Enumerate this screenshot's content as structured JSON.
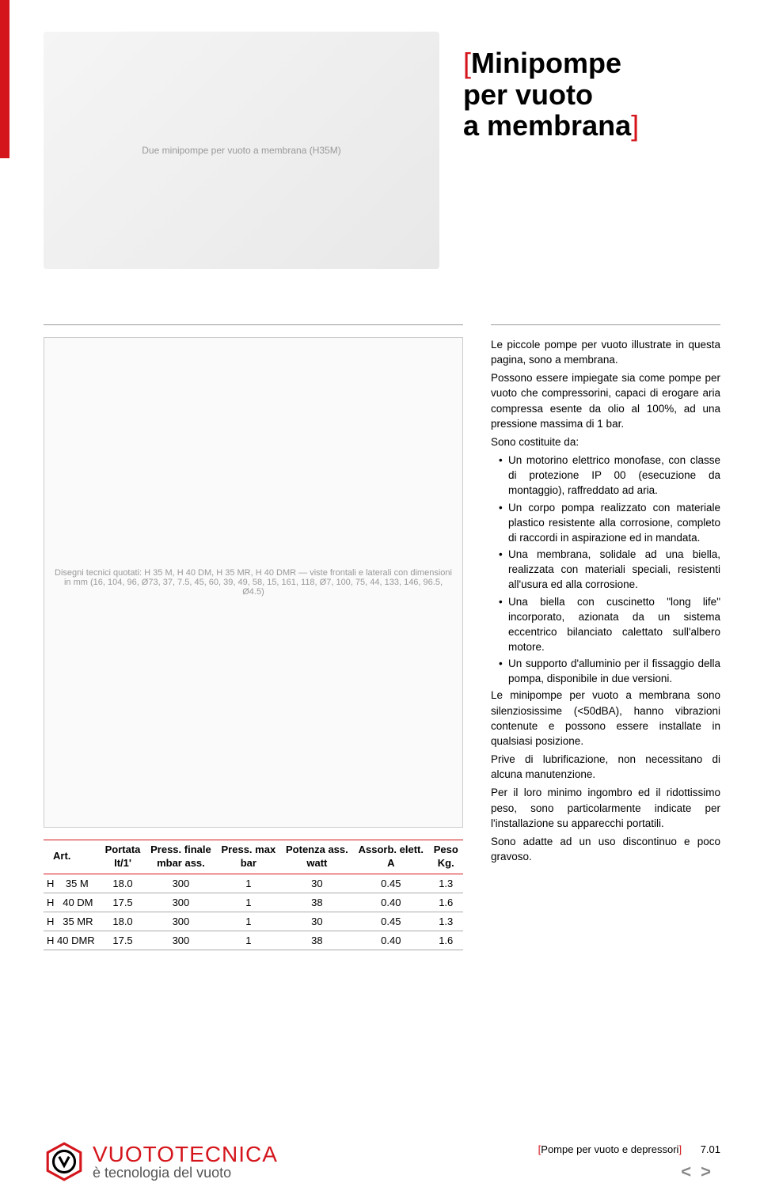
{
  "title": {
    "line1": "Minipompe",
    "line2": "per vuoto",
    "line3": "a membrana"
  },
  "colors": {
    "accent_red": "#d4161c",
    "text": "#000000",
    "muted": "#888888"
  },
  "photo_alt": "Due minipompe per vuoto a membrana (H35M)",
  "diagram_alt": "Disegni tecnici quotati: H 35 M, H 40 DM, H 35 MR, H 40 DMR — viste frontali e laterali con dimensioni in mm (16, 104, 96, Ø73, 37, 7.5, 45, 60, 39, 49, 58, 15, 161, 118, Ø7, 100, 75, 44, 133, 146, 96.5, Ø4.5)",
  "description": {
    "p1": "Le piccole pompe per vuoto illustrate in questa pagina, sono a membrana.",
    "p2": "Possono essere impiegate sia come pompe per vuoto che compressorini, capaci di erogare aria compressa esente da olio al 100%, ad una pressione massima di 1 bar.",
    "p3": "Sono costituite da:",
    "bullets": [
      "Un motorino elettrico monofase, con classe di protezione IP 00 (esecuzione da montaggio), raffreddato ad aria.",
      "Un corpo pompa realizzato con materiale plastico resistente alla corrosione, completo di raccordi in aspirazione ed in mandata.",
      "Una membrana, solidale ad una biella, realizzata con materiali speciali, resistenti all'usura ed alla corrosione.",
      "Una biella con cuscinetto \"long life\" incorporato, azionata da un sistema eccentrico bilanciato calettato sull'albero motore.",
      "Un supporto d'alluminio per il fissaggio della pompa, disponibile in due versioni."
    ],
    "p4": "Le minipompe per vuoto a membrana sono silenziosissime (<50dBA), hanno vibrazioni contenute e possono essere installate in qualsiasi posizione.",
    "p5": "Prive di lubrificazione, non necessitano di alcuna manutenzione.",
    "p6": "Per il loro minimo ingombro ed il ridottissimo peso, sono particolarmente indicate per l'installazione su apparecchi portatili.",
    "p7": "Sono adatte ad un uso discontinuo e poco gravoso."
  },
  "table": {
    "columns": [
      {
        "l1": "Art.",
        "l2": ""
      },
      {
        "l1": "Portata",
        "l2": "It/1'"
      },
      {
        "l1": "Press. finale",
        "l2": "mbar ass."
      },
      {
        "l1": "Press. max",
        "l2": "bar"
      },
      {
        "l1": "Potenza ass.",
        "l2": "watt"
      },
      {
        "l1": "Assorb. elett.",
        "l2": "A"
      },
      {
        "l1": "Peso",
        "l2": "Kg."
      }
    ],
    "rows": [
      [
        "H    35 M",
        "18.0",
        "300",
        "1",
        "30",
        "0.45",
        "1.3"
      ],
      [
        "H   40 DM",
        "17.5",
        "300",
        "1",
        "38",
        "0.40",
        "1.6"
      ],
      [
        "H   35 MR",
        "18.0",
        "300",
        "1",
        "30",
        "0.45",
        "1.3"
      ],
      [
        "H 40 DMR",
        "17.5",
        "300",
        "1",
        "38",
        "0.40",
        "1.6"
      ]
    ]
  },
  "footer": {
    "brand": "VUOTOTECNICA",
    "tagline": "è tecnologia del vuoto",
    "section": "Pompe per vuoto e depressori",
    "page": "7.01",
    "prev": "<",
    "next": ">"
  }
}
